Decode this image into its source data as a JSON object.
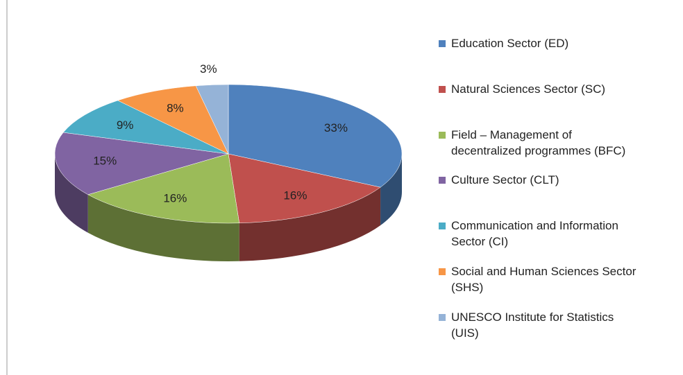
{
  "chart_data": {
    "type": "pie",
    "categories": [
      "Education Sector (ED)",
      "Natural Sciences Sector (SC)",
      "Field – Management of decentralized programmes (BFC)",
      "Culture Sector (CLT)",
      "Communication and Information Sector (CI)",
      "Social and Human Sciences Sector (SHS)",
      "UNESCO Institute for Statistics (UIS)"
    ],
    "values": [
      33,
      16,
      16,
      15,
      9,
      8,
      3
    ],
    "value_labels": [
      "33%",
      "16%",
      "16%",
      "15%",
      "9%",
      "8%",
      "3%"
    ],
    "colors": [
      "#4f81bd",
      "#c0504d",
      "#9bbb59",
      "#8064a2",
      "#4bacc6",
      "#f79646",
      "#95b3d7"
    ],
    "legend": "right"
  }
}
